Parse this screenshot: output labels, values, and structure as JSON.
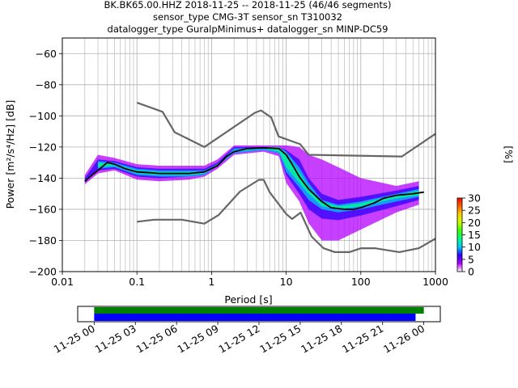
{
  "chart_data": [
    {
      "type": "heatmap",
      "title_lines": [
        "BK.BK65.00.HHZ   2018-11-25 -- 2018-11-25  (46/46 segments)",
        "sensor_type CMG-3T sensor_sn T310032",
        "datalogger_type GuralpMinimus+ datalogger_sn MINP-DC59"
      ],
      "xlabel": "Period [s]",
      "ylabel": "Power [m²/s⁴/Hz] [dB]",
      "xscale": "log",
      "xlim": [
        0.01,
        1000
      ],
      "ylim": [
        -200,
        -50
      ],
      "x_ticks": [
        0.01,
        0.1,
        1,
        10,
        100,
        1000
      ],
      "x_tick_labels": [
        "0.01",
        "0.1",
        "1",
        "10",
        "100",
        "1000"
      ],
      "y_ticks": [
        -200,
        -180,
        -160,
        -140,
        -120,
        -100,
        -80,
        -60
      ],
      "y_tick_labels": [
        "−200",
        "−180",
        "−160",
        "−140",
        "−120",
        "−100",
        "−80",
        "−60"
      ],
      "grid": true,
      "colorbar": {
        "label": "[%]",
        "min": 0,
        "max": 30,
        "ticks": [
          0,
          5,
          10,
          15,
          20,
          25,
          30
        ],
        "tick_labels": [
          "0",
          "5",
          "10",
          "15",
          "20",
          "25",
          "30"
        ],
        "colors": [
          "#ffffff",
          "#b400ff",
          "#2c00ff",
          "#00c8ff",
          "#00ff8a",
          "#3cff00",
          "#c8ff00",
          "#ffd200",
          "#ff6400",
          "#ff0000"
        ]
      },
      "series": [
        {
          "kind": "noise_model",
          "color": "#666666",
          "x": [
            0.1,
            0.22,
            0.32,
            0.8,
            3.8,
            4.6,
            6.3,
            7.9,
            15.4,
            20,
            354.8,
            1000
          ],
          "y": [
            -91.5,
            -97.4,
            -110.5,
            -120,
            -98,
            -96.5,
            -101,
            -113.2,
            -118.2,
            -125,
            -126.1,
            -111.5
          ]
        },
        {
          "kind": "noise_model",
          "color": "#666666",
          "x": [
            0.1,
            0.17,
            0.4,
            0.8,
            1.24,
            2.4,
            4.3,
            5,
            6,
            10,
            12,
            15.6,
            21.9,
            31.6,
            45,
            70,
            101,
            154,
            328,
            600,
            1000
          ],
          "y": [
            -168,
            -166.7,
            -166.7,
            -169.2,
            -163.7,
            -148.6,
            -141.1,
            -141.1,
            -149,
            -163,
            -166.2,
            -162.1,
            -177.5,
            -185,
            -187.5,
            -187.5,
            -185,
            -185,
            -187.5,
            -185,
            -178.8
          ]
        },
        {
          "kind": "mean",
          "color": "#000000",
          "x": [
            0.02,
            0.025,
            0.03,
            0.04,
            0.05,
            0.07,
            0.1,
            0.15,
            0.2,
            0.3,
            0.5,
            0.8,
            1.2,
            1.6,
            2,
            3,
            5,
            8,
            10,
            12,
            15,
            20,
            30,
            40,
            60,
            80,
            100,
            150,
            200,
            300,
            500,
            700
          ],
          "y": [
            -142,
            -138,
            -135,
            -130,
            -131,
            -134,
            -136,
            -136.5,
            -137,
            -137,
            -137,
            -136,
            -132,
            -126,
            -123,
            -121,
            -120.5,
            -121,
            -125,
            -131,
            -139,
            -147,
            -155,
            -159,
            -160,
            -160,
            -159,
            -156,
            -153,
            -151,
            -150,
            -149
          ]
        }
      ],
      "heatmap_bands": [
        {
          "x": [
            0.02,
            0.03,
            0.05,
            0.1,
            0.2,
            0.5,
            0.8,
            1.2,
            2,
            5,
            8,
            10,
            15,
            20,
            30,
            50,
            100,
            300,
            600
          ],
          "y_low": [
            -144,
            -137,
            -135,
            -141,
            -142,
            -141,
            -139,
            -134,
            -125,
            -123,
            -126,
            -143,
            -155,
            -169,
            -180,
            -180,
            -173,
            -162,
            -157
          ],
          "y_high": [
            -138,
            -125,
            -127,
            -131,
            -132,
            -132,
            -132,
            -128,
            -119,
            -119,
            -119,
            -119,
            -120,
            -125,
            -128,
            -133,
            -140,
            -145,
            -142
          ],
          "color": "#b400ff"
        },
        {
          "x": [
            0.02,
            0.03,
            0.05,
            0.1,
            0.2,
            0.5,
            0.8,
            1.2,
            2,
            5,
            8,
            10,
            15,
            20,
            30,
            50,
            100,
            300,
            600
          ],
          "y_low": [
            -142,
            -135,
            -134,
            -139,
            -140,
            -139,
            -138,
            -132,
            -124,
            -122,
            -124,
            -138,
            -150,
            -160,
            -166,
            -167,
            -164,
            -158,
            -154
          ],
          "y_high": [
            -140,
            -128,
            -129,
            -133,
            -134,
            -134,
            -134,
            -130,
            -120,
            -120,
            -120,
            -122,
            -128,
            -140,
            -150,
            -154,
            -152,
            -148,
            -145
          ],
          "color": "#2c00ff"
        },
        {
          "x": [
            0.03,
            0.05,
            0.1,
            0.2,
            0.5,
            0.8,
            1.2,
            2,
            5,
            8,
            10,
            15,
            20,
            30,
            50,
            100,
            300,
            600
          ],
          "y_low": [
            -134,
            -133,
            -138,
            -139,
            -139,
            -138,
            -132,
            -124,
            -122,
            -124,
            -136,
            -146,
            -154,
            -160,
            -162,
            -160,
            -155,
            -152
          ],
          "y_high": [
            -129,
            -130,
            -134,
            -135,
            -135,
            -135,
            -131,
            -121,
            -120,
            -120,
            -123,
            -133,
            -143,
            -154,
            -157,
            -155,
            -150,
            -147
          ],
          "color": "#00c8ff"
        },
        {
          "x": [
            0.03,
            0.05,
            0.1,
            0.2,
            0.5,
            0.8,
            1.2,
            2,
            5,
            8,
            10,
            15,
            20,
            30,
            50,
            100,
            300,
            600
          ],
          "y_low": [
            -133,
            -132,
            -137,
            -138,
            -138,
            -137,
            -132,
            -123,
            -121,
            -123,
            -133,
            -143,
            -150,
            -158,
            -160,
            -158,
            -153,
            -151
          ],
          "y_high": [
            -130,
            -131,
            -135,
            -136,
            -136,
            -136,
            -131,
            -122,
            -120,
            -120,
            -124,
            -136,
            -146,
            -155,
            -158,
            -156,
            -151,
            -148
          ],
          "color": "#00ff8a"
        }
      ]
    },
    {
      "type": "timeline",
      "x_tick_labels": [
        "11-25 00",
        "11-25 03",
        "11-25 06",
        "11-25 09",
        "11-25 12",
        "11-25 15",
        "11-25 18",
        "11-25 21",
        "11-26 00"
      ],
      "x_ticks_hours": [
        0,
        3,
        6,
        9,
        12,
        15,
        18,
        21,
        24
      ],
      "xlim_hours": [
        -1.2,
        25.2
      ],
      "bars": [
        {
          "color": "#008000",
          "start_hours": 0,
          "end_hours": 24.0
        },
        {
          "color": "#0000ff",
          "start_hours": 0,
          "end_hours": 23.4
        }
      ]
    }
  ]
}
